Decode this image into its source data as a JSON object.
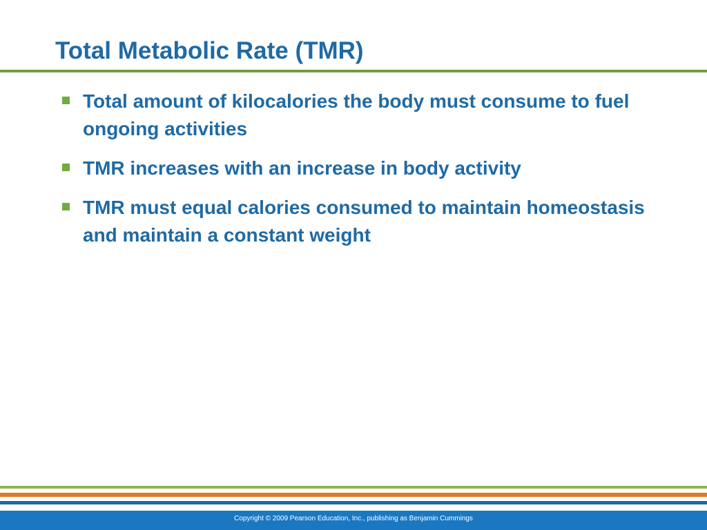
{
  "slide": {
    "title": "Total Metabolic Rate (TMR)",
    "bullets": [
      {
        "text": "Total amount of kilocalories the body must consume to fuel ongoing activities"
      },
      {
        "text": "TMR increases with an increase in body activity"
      },
      {
        "text": "TMR must equal calories consumed to maintain homeostasis and maintain a constant weight"
      }
    ]
  },
  "footer": {
    "copyright": "Copyright © 2009 Pearson Education, Inc., publishing as Benjamin Cummings"
  },
  "colors": {
    "title_text": "#1f6aa5",
    "bullet_marker": "#6fab3e",
    "title_rule": "#6f9e3c",
    "stripe_green": "#8db64f",
    "stripe_orange": "#e07a26",
    "stripe_blue": "#1f6aa5",
    "footer_bar": "#1a78c2"
  }
}
